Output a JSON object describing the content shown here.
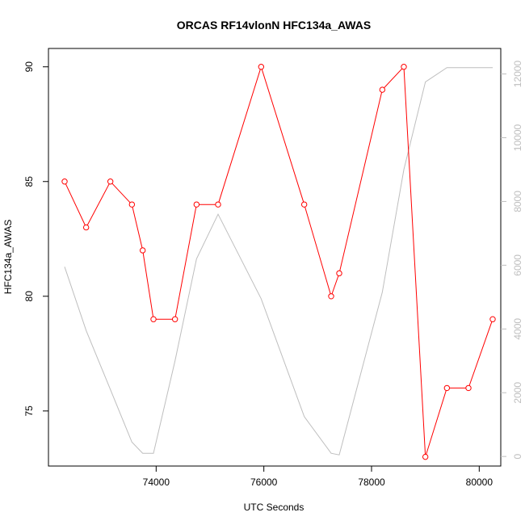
{
  "chart_data": {
    "type": "line",
    "title": "ORCAS RF14vlonN HFC134a_AWAS",
    "xlabel": "UTC Seconds",
    "ylabel": "HFC134a_AWAS",
    "xlim": [
      72000,
      80400
    ],
    "ylim": [
      72.6,
      90.8
    ],
    "y2lim": [
      -300,
      12800
    ],
    "x_ticks": [
      74000,
      76000,
      78000,
      80000
    ],
    "y_ticks": [
      75,
      80,
      85,
      90
    ],
    "y2_ticks": [
      0,
      2000,
      4000,
      6000,
      8000,
      10000,
      12000
    ],
    "series": [
      {
        "axis": "left",
        "color": "#ff0000",
        "marker": "open-circle",
        "x": [
          72300,
          72700,
          73150,
          73550,
          73750,
          73950,
          74350,
          74750,
          75150,
          75950,
          76750,
          77250,
          77400,
          78200,
          78600,
          79000,
          79400,
          79800,
          80250
        ],
        "y": [
          85,
          83,
          85,
          84,
          82,
          79,
          79,
          84,
          84,
          90,
          84,
          80,
          81,
          89,
          90,
          73,
          76,
          76,
          79
        ]
      },
      {
        "axis": "right",
        "color": "#bebebe",
        "marker": "none",
        "x": [
          72300,
          72700,
          73150,
          73550,
          73750,
          73950,
          74350,
          74750,
          75150,
          75950,
          76750,
          77250,
          77400,
          78200,
          78600,
          79000,
          79400,
          79800,
          80250
        ],
        "y": [
          5950,
          3950,
          2100,
          450,
          100,
          100,
          3000,
          6200,
          7600,
          4950,
          1250,
          100,
          50,
          5150,
          9000,
          11750,
          12200,
          12200,
          12200
        ]
      }
    ]
  }
}
